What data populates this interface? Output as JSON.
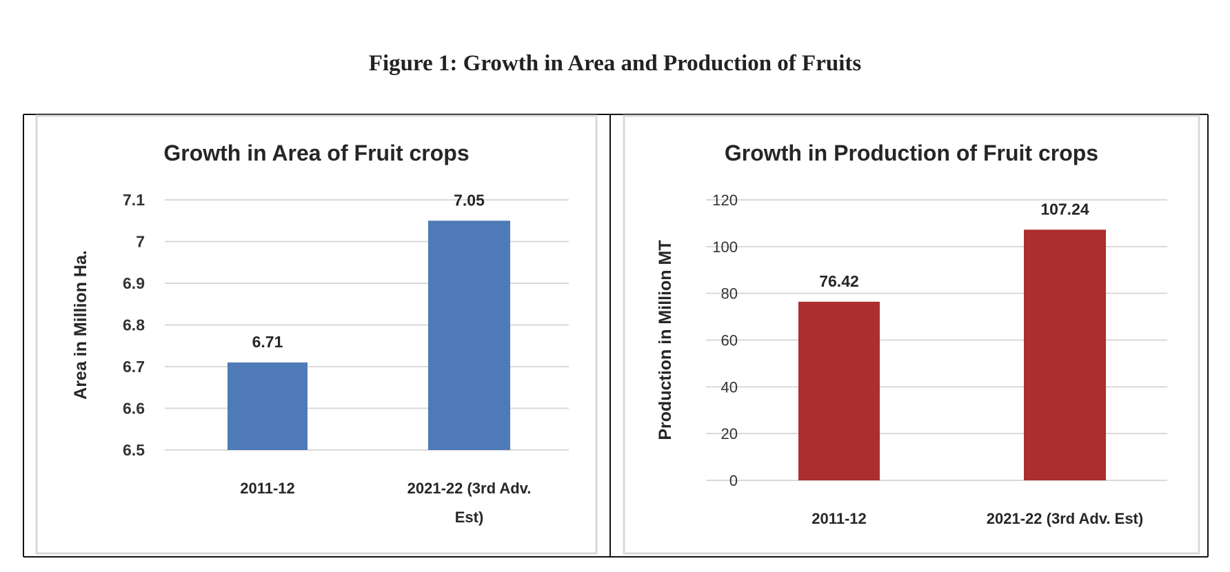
{
  "figure_title": "Figure 1: Growth in Area and Production of Fruits",
  "chart_data": [
    {
      "type": "bar",
      "title": "Growth in Area of Fruit crops",
      "xlabel": "",
      "ylabel": "Area in Million Ha.",
      "categories": [
        [
          "2011-12"
        ],
        [
          "2021-22 (3rd Adv.",
          "Est)"
        ]
      ],
      "values": [
        6.71,
        7.05
      ],
      "data_labels": [
        "6.71",
        "7.05"
      ],
      "ylim": [
        6.5,
        7.1
      ],
      "yticks": [
        6.5,
        6.6,
        6.7,
        6.8,
        6.9,
        7,
        7.1
      ],
      "ytick_labels": [
        "6.5",
        "6.6",
        "6.7",
        "6.8",
        "6.9",
        "7",
        "7.1"
      ],
      "grid": true,
      "color": "#4f7ab8"
    },
    {
      "type": "bar",
      "title": "Growth in Production of Fruit crops",
      "xlabel": "",
      "ylabel": "Production in Million MT",
      "categories": [
        [
          "2011-12"
        ],
        [
          "2021-22 (3rd Adv. Est)"
        ]
      ],
      "values": [
        76.42,
        107.24
      ],
      "data_labels": [
        "76.42",
        "107.24"
      ],
      "ylim": [
        0,
        120
      ],
      "yticks": [
        0,
        20,
        40,
        60,
        80,
        100,
        120
      ],
      "ytick_labels": [
        "0",
        "20",
        "40",
        "60",
        "80",
        "100",
        "120"
      ],
      "grid": true,
      "color": "#ac2e2e"
    }
  ]
}
